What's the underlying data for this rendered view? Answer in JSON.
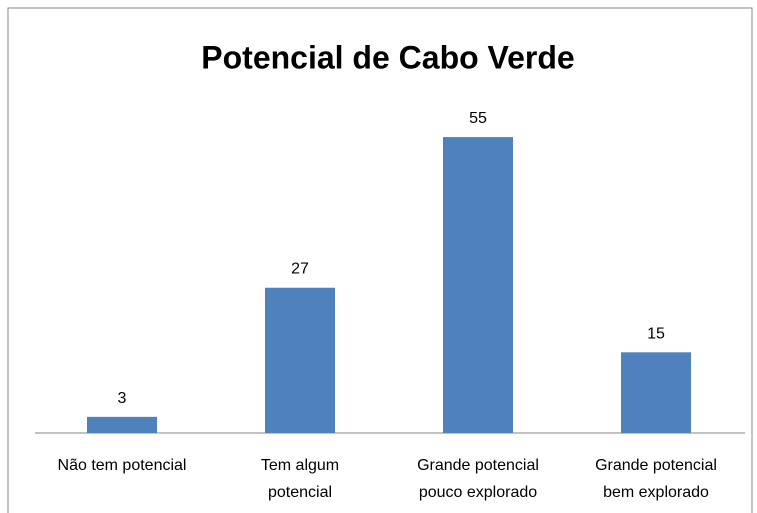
{
  "chart_data": {
    "type": "bar",
    "title": "Potencial de Cabo Verde",
    "categories": [
      "Não tem potencial",
      "Tem algum\npotencial",
      "Grande potencial\npouco explorado",
      "Grande potencial\nbem explorado"
    ],
    "values": [
      3,
      27,
      55,
      15
    ],
    "color": "#4f81bd"
  }
}
